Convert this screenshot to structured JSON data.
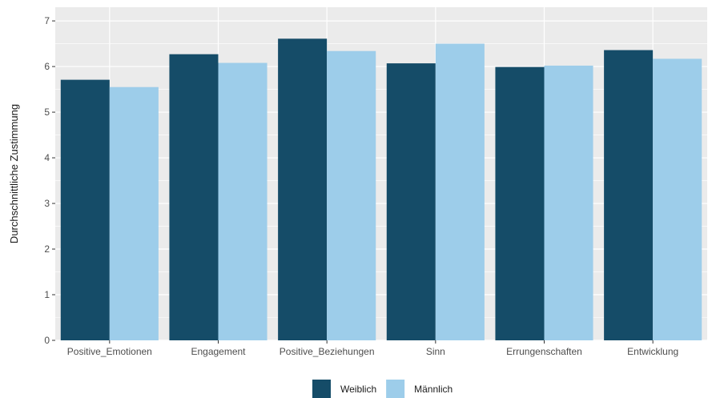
{
  "chart_data": {
    "type": "bar",
    "categories": [
      "Positive_Emotionen",
      "Engagement",
      "Positive_Beziehungen",
      "Sinn",
      "Errungenschaften",
      "Entwicklung"
    ],
    "series": [
      {
        "name": "Weiblich",
        "color": "#154c68",
        "values": [
          5.71,
          6.27,
          6.61,
          6.07,
          5.99,
          6.36
        ]
      },
      {
        "name": "Männlich",
        "color": "#9dcdea",
        "values": [
          5.55,
          6.08,
          6.34,
          6.5,
          6.02,
          6.17
        ]
      }
    ],
    "title": "",
    "xlabel": "",
    "ylabel": "Durchschnittliche Zustimmung",
    "ylim": [
      0,
      7.3
    ],
    "yticks": [
      0,
      1,
      2,
      3,
      4,
      5,
      6,
      7
    ],
    "grid": true,
    "legend_position": "bottom",
    "panel_background": "#ebebeb",
    "grid_color": "#ffffff"
  }
}
